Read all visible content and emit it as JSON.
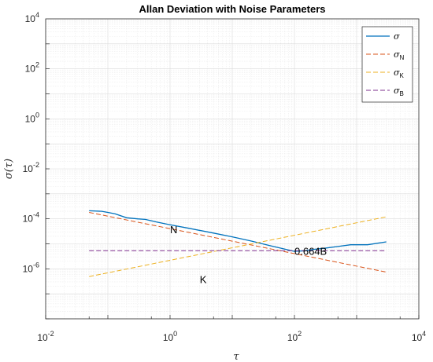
{
  "chart_data": {
    "type": "line",
    "title": "Allan Deviation with Noise Parameters",
    "xlabel": "τ",
    "ylabel": "σ(τ)",
    "xscale": "log",
    "yscale": "log",
    "xlim": [
      0.01,
      10000
    ],
    "ylim": [
      1e-08,
      10000
    ],
    "grid": true,
    "legend_position": "top-right",
    "x_tick_labels": [
      {
        "base": "10",
        "exp": "-2"
      },
      {
        "base": "10",
        "exp": "0"
      },
      {
        "base": "10",
        "exp": "2"
      },
      {
        "base": "10",
        "exp": "4"
      }
    ],
    "y_tick_labels": [
      {
        "base": "10",
        "exp": "-6"
      },
      {
        "base": "10",
        "exp": "-4"
      },
      {
        "base": "10",
        "exp": "-2"
      },
      {
        "base": "10",
        "exp": "0"
      },
      {
        "base": "10",
        "exp": "2"
      },
      {
        "base": "10",
        "exp": "4"
      }
    ],
    "series": [
      {
        "name": "σ",
        "subscript": "",
        "style": "solid",
        "color": "#0072BD",
        "points": [
          [
            0.05,
            0.00021
          ],
          [
            0.08,
            0.0002
          ],
          [
            0.1,
            0.00018
          ],
          [
            0.13,
            0.00016
          ],
          [
            0.2,
            0.00011
          ],
          [
            0.3,
            0.0001
          ],
          [
            0.4,
            9.5e-05
          ],
          [
            0.6,
            7.5e-05
          ],
          [
            1,
            5.8e-05
          ],
          [
            2,
            4.2e-05
          ],
          [
            5,
            2.7e-05
          ],
          [
            10,
            1.9e-05
          ],
          [
            20,
            1.3e-05
          ],
          [
            40,
            8.5e-06
          ],
          [
            70,
            6.1e-06
          ],
          [
            100,
            5e-06
          ],
          [
            150,
            5.3e-06
          ],
          [
            200,
            6e-06
          ],
          [
            300,
            6.6e-06
          ],
          [
            500,
            7.8e-06
          ],
          [
            800,
            9.2e-06
          ],
          [
            1500,
            9.2e-06
          ],
          [
            3000,
            1.2e-05
          ]
        ]
      },
      {
        "name": "σ",
        "subscript": "N",
        "style": "dashed",
        "color": "#D95319",
        "points": [
          [
            0.05,
            0.00018
          ],
          [
            3000,
            7.4e-07
          ]
        ]
      },
      {
        "name": "σ",
        "subscript": "K",
        "style": "dashed",
        "color": "#EDB120",
        "points": [
          [
            0.05,
            4.9e-07
          ],
          [
            3000,
            0.00012
          ]
        ]
      },
      {
        "name": "σ",
        "subscript": "B",
        "style": "dashed",
        "color": "#7E2F8E",
        "points": [
          [
            0.05,
            5.3e-06
          ],
          [
            3000,
            5.3e-06
          ]
        ]
      }
    ],
    "annotations": [
      {
        "text": "N",
        "x": 1,
        "y": 3.8e-05
      },
      {
        "text": "K",
        "x": 3,
        "y": 3.8e-07
      },
      {
        "text": "0.664B",
        "x": 100,
        "y": 5.3e-06
      }
    ]
  }
}
